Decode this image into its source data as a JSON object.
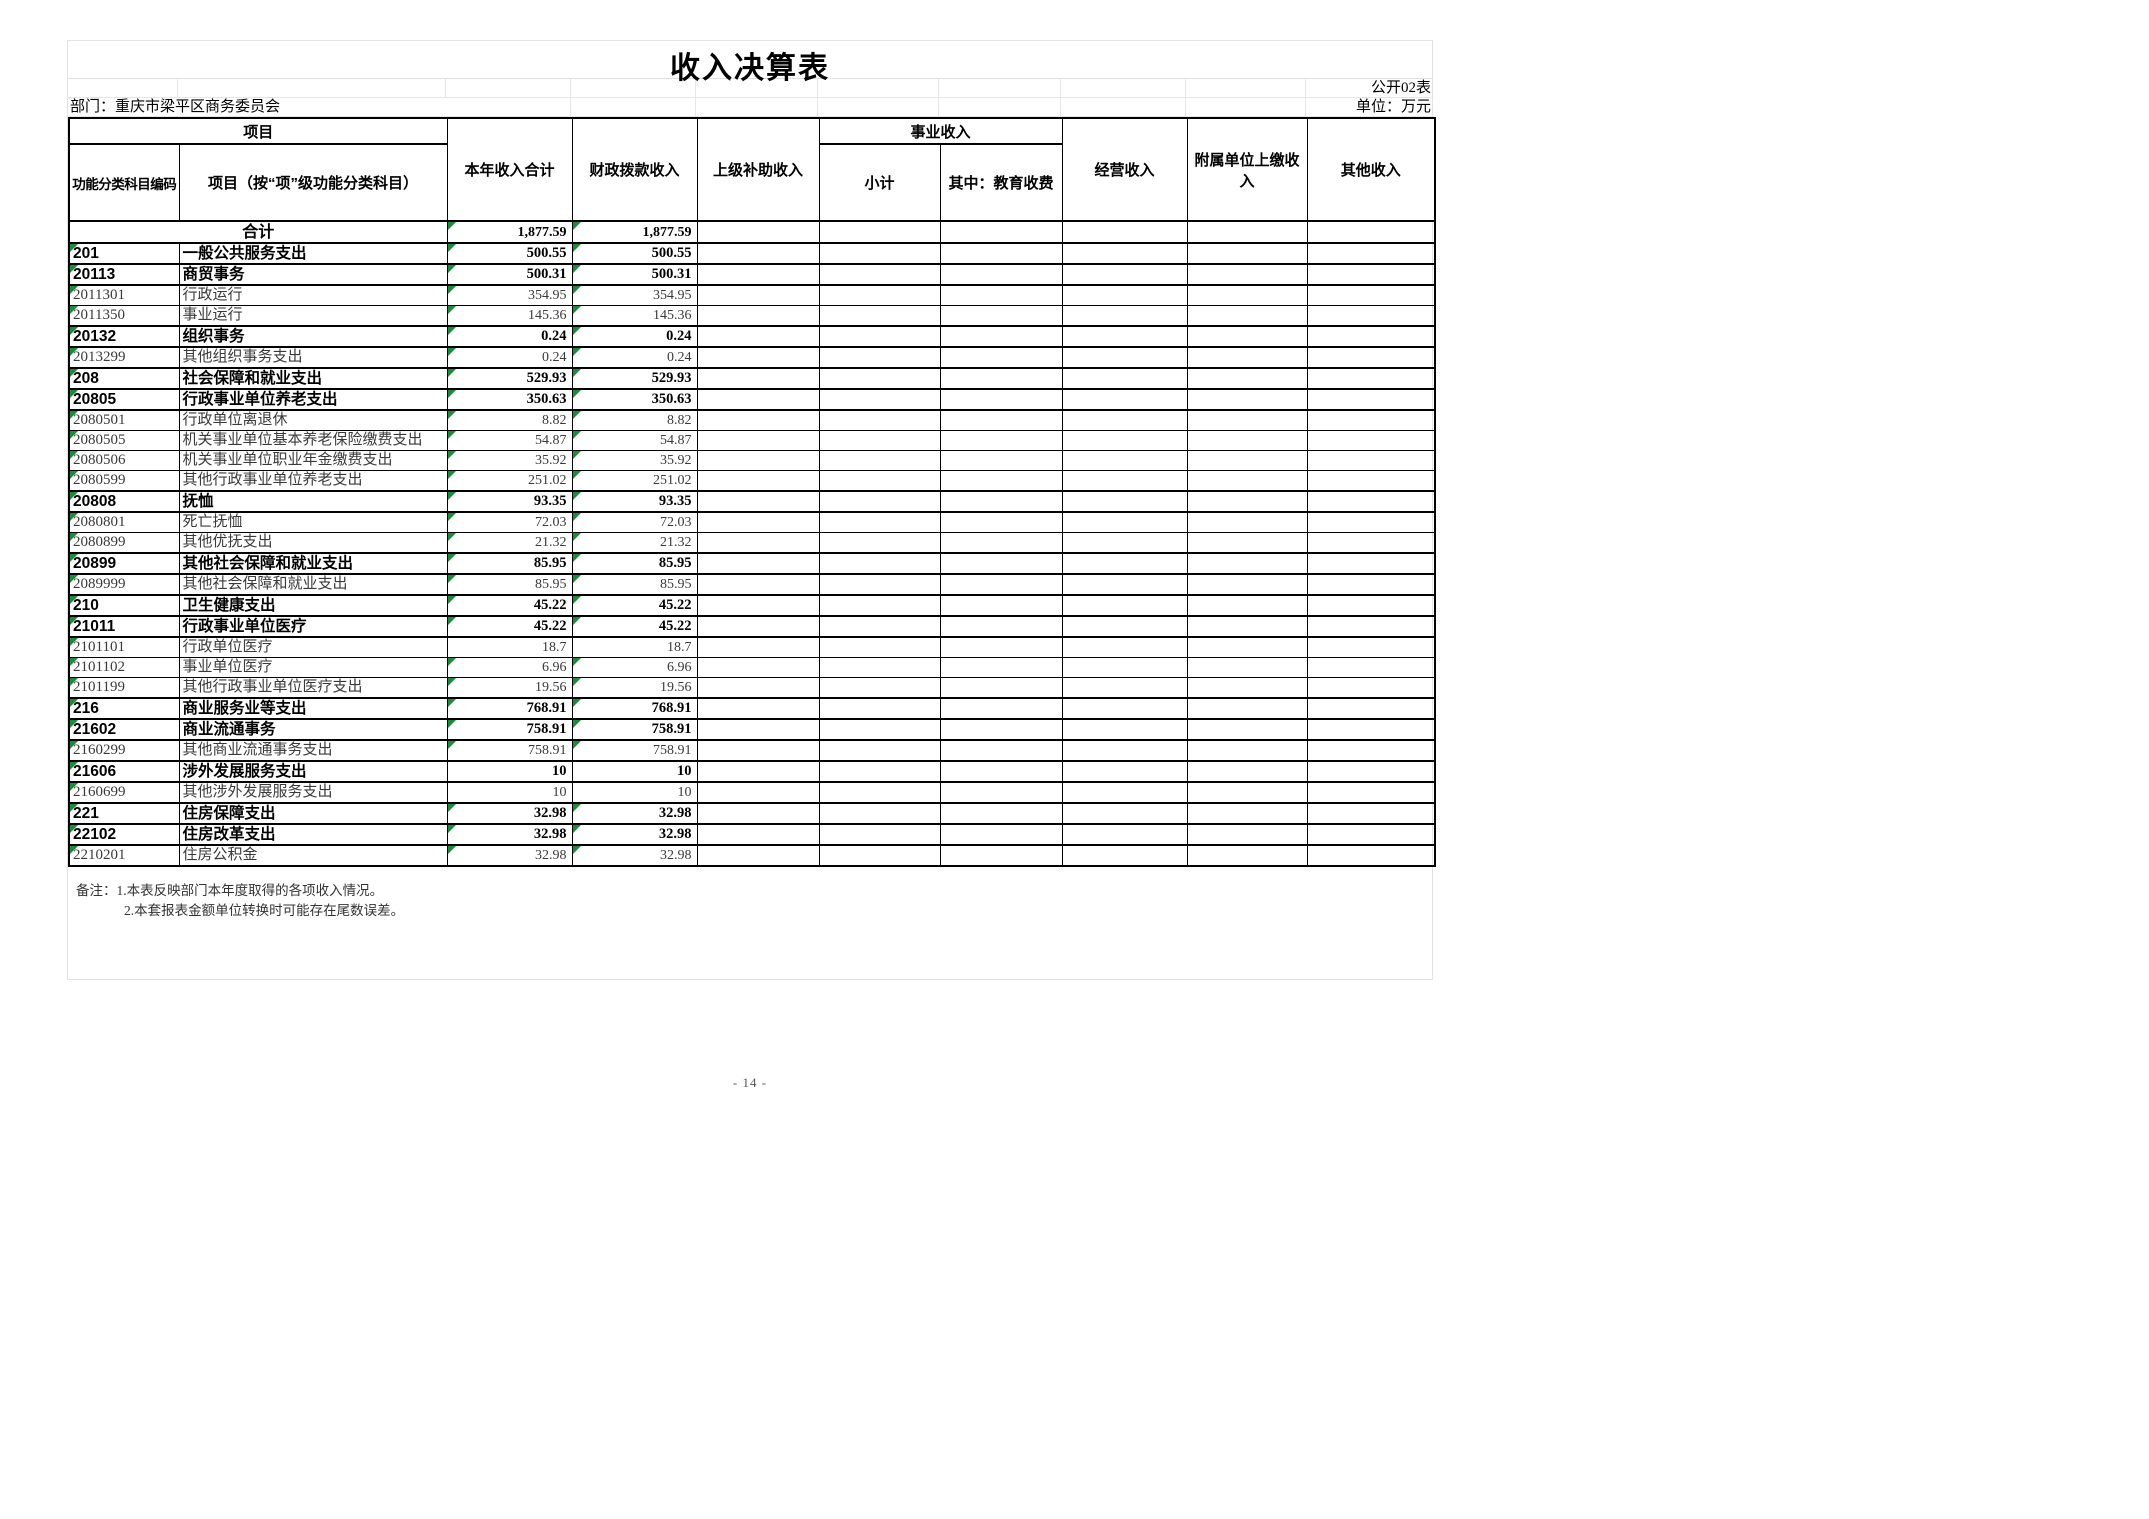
{
  "title": "收入决算表",
  "meta": {
    "table_code": "公开02表",
    "department": "部门：重庆市梁平区商务委员会",
    "unit": "单位：万元",
    "page_number": "- 14 -"
  },
  "header": {
    "project_group": "项目",
    "code_col": "功能分类科目编码",
    "item_col": "项目（按“项”级功能分类科目）",
    "total_col": "本年收入合计",
    "fiscal_col": "财政拨款收入",
    "superior_col": "上级补助收入",
    "business_group": "事业收入",
    "subtotal_col": "小计",
    "edu_col": "其中：教育收费",
    "operating_col": "经营收入",
    "affiliate_col": "附属单位上缴收入",
    "other_col": "其他收入"
  },
  "table": {
    "summary_row": {
      "label": "合计",
      "total": "1,877.59",
      "fiscal": "1,877.59"
    },
    "rows": [
      {
        "code": "201",
        "label": "一般公共服务支出",
        "total": "500.55",
        "fiscal": "500.55",
        "bold": true,
        "tri_code": true,
        "tri_val": true
      },
      {
        "code": "20113",
        "label": "商贸事务",
        "total": "500.31",
        "fiscal": "500.31",
        "bold": true,
        "tri_code": true,
        "tri_val": true
      },
      {
        "code": "2011301",
        "label": "行政运行",
        "total": "354.95",
        "fiscal": "354.95",
        "bold": false,
        "tri_code": true,
        "tri_val": true
      },
      {
        "code": "2011350",
        "label": "事业运行",
        "total": "145.36",
        "fiscal": "145.36",
        "bold": false,
        "tri_code": true,
        "tri_val": true
      },
      {
        "code": "20132",
        "label": "组织事务",
        "total": "0.24",
        "fiscal": "0.24",
        "bold": true,
        "tri_code": true,
        "tri_val": true
      },
      {
        "code": "2013299",
        "label": "其他组织事务支出",
        "total": "0.24",
        "fiscal": "0.24",
        "bold": false,
        "tri_code": true,
        "tri_val": true
      },
      {
        "code": "208",
        "label": "社会保障和就业支出",
        "total": "529.93",
        "fiscal": "529.93",
        "bold": true,
        "tri_code": true,
        "tri_val": true
      },
      {
        "code": "20805",
        "label": "行政事业单位养老支出",
        "total": "350.63",
        "fiscal": "350.63",
        "bold": true,
        "tri_code": true,
        "tri_val": true
      },
      {
        "code": "2080501",
        "label": "行政单位离退休",
        "total": "8.82",
        "fiscal": "8.82",
        "bold": false,
        "tri_code": true,
        "tri_val": true
      },
      {
        "code": "2080505",
        "label": "机关事业单位基本养老保险缴费支出",
        "total": "54.87",
        "fiscal": "54.87",
        "bold": false,
        "tri_code": true,
        "tri_val": true
      },
      {
        "code": "2080506",
        "label": "机关事业单位职业年金缴费支出",
        "total": "35.92",
        "fiscal": "35.92",
        "bold": false,
        "tri_code": true,
        "tri_val": true
      },
      {
        "code": "2080599",
        "label": "其他行政事业单位养老支出",
        "total": "251.02",
        "fiscal": "251.02",
        "bold": false,
        "tri_code": true,
        "tri_val": true
      },
      {
        "code": "20808",
        "label": "抚恤",
        "total": "93.35",
        "fiscal": "93.35",
        "bold": true,
        "tri_code": true,
        "tri_val": true
      },
      {
        "code": "2080801",
        "label": "死亡抚恤",
        "total": "72.03",
        "fiscal": "72.03",
        "bold": false,
        "tri_code": true,
        "tri_val": true
      },
      {
        "code": "2080899",
        "label": "其他优抚支出",
        "total": "21.32",
        "fiscal": "21.32",
        "bold": false,
        "tri_code": true,
        "tri_val": true
      },
      {
        "code": "20899",
        "label": "其他社会保障和就业支出",
        "total": "85.95",
        "fiscal": "85.95",
        "bold": true,
        "tri_code": true,
        "tri_val": true
      },
      {
        "code": "2089999",
        "label": "其他社会保障和就业支出",
        "total": "85.95",
        "fiscal": "85.95",
        "bold": false,
        "tri_code": true,
        "tri_val": true
      },
      {
        "code": "210",
        "label": "卫生健康支出",
        "total": "45.22",
        "fiscal": "45.22",
        "bold": true,
        "tri_code": true,
        "tri_val": true
      },
      {
        "code": "21011",
        "label": "行政事业单位医疗",
        "total": "45.22",
        "fiscal": "45.22",
        "bold": true,
        "tri_code": true,
        "tri_val": true
      },
      {
        "code": "2101101",
        "label": "行政单位医疗",
        "total": "18.7",
        "fiscal": "18.7",
        "bold": false,
        "tri_code": true,
        "tri_val": false
      },
      {
        "code": "2101102",
        "label": "事业单位医疗",
        "total": "6.96",
        "fiscal": "6.96",
        "bold": false,
        "tri_code": true,
        "tri_val": true
      },
      {
        "code": "2101199",
        "label": "其他行政事业单位医疗支出",
        "total": "19.56",
        "fiscal": "19.56",
        "bold": false,
        "tri_code": true,
        "tri_val": true
      },
      {
        "code": "216",
        "label": "商业服务业等支出",
        "total": "768.91",
        "fiscal": "768.91",
        "bold": true,
        "tri_code": true,
        "tri_val": true
      },
      {
        "code": "21602",
        "label": "商业流通事务",
        "total": "758.91",
        "fiscal": "758.91",
        "bold": true,
        "tri_code": true,
        "tri_val": true
      },
      {
        "code": "2160299",
        "label": "其他商业流通事务支出",
        "total": "758.91",
        "fiscal": "758.91",
        "bold": false,
        "tri_code": true,
        "tri_val": true
      },
      {
        "code": "21606",
        "label": "涉外发展服务支出",
        "total": "10",
        "fiscal": "10",
        "bold": true,
        "tri_code": true,
        "tri_val": false
      },
      {
        "code": "2160699",
        "label": "其他涉外发展服务支出",
        "total": "10",
        "fiscal": "10",
        "bold": false,
        "tri_code": true,
        "tri_val": false
      },
      {
        "code": "221",
        "label": "住房保障支出",
        "total": "32.98",
        "fiscal": "32.98",
        "bold": true,
        "tri_code": true,
        "tri_val": true
      },
      {
        "code": "22102",
        "label": "住房改革支出",
        "total": "32.98",
        "fiscal": "32.98",
        "bold": true,
        "tri_code": true,
        "tri_val": true
      },
      {
        "code": "2210201",
        "label": "住房公积金",
        "total": "32.98",
        "fiscal": "32.98",
        "bold": false,
        "tri_code": true,
        "tri_val": true
      }
    ]
  },
  "notes": {
    "prefix": "备注：",
    "line1": "1.本表反映部门本年度取得的各项收入情况。",
    "line2": "2.本套报表金额单位转换时可能存在尾数误差。"
  }
}
